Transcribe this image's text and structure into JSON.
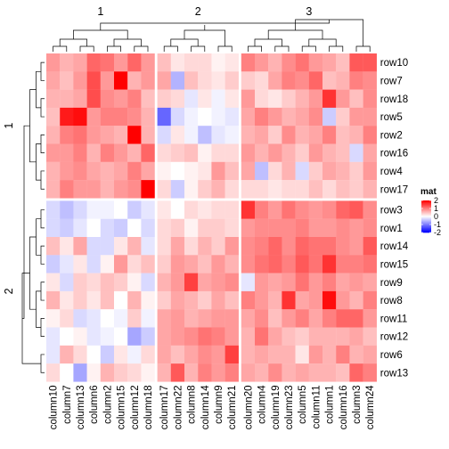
{
  "chart_data": {
    "type": "heatmap",
    "title": "",
    "column_split_labels": [
      "1",
      "2",
      "3"
    ],
    "row_split_labels": [
      "1",
      "2"
    ],
    "column_groups": [
      [
        "column10",
        "column7",
        "column13",
        "column6",
        "column2",
        "column15",
        "column12",
        "column18"
      ],
      [
        "column17",
        "column22",
        "column8",
        "column14",
        "column9",
        "column21"
      ],
      [
        "column20",
        "column4",
        "column19",
        "column23",
        "column5",
        "column11",
        "column1",
        "column16",
        "column3",
        "column24"
      ]
    ],
    "row_groups": [
      [
        "row10",
        "row7",
        "row18",
        "row5",
        "row2",
        "row16",
        "row4",
        "row17"
      ],
      [
        "row3",
        "row1",
        "row14",
        "row15",
        "row9",
        "row8",
        "row11",
        "row12",
        "row6",
        "row13"
      ]
    ],
    "values": [
      [
        0.8,
        0.6,
        0.7,
        1.2,
        1.1,
        0.8,
        1.2,
        0.8,
        0.5,
        0.2,
        0.3,
        0.3,
        0.1,
        0.2,
        1.0,
        0.8,
        0.6,
        0.9,
        1.1,
        0.8,
        0.7,
        0.5,
        1.3,
        1.3
      ],
      [
        0.7,
        0.5,
        0.8,
        1.4,
        0.8,
        2.0,
        0.6,
        0.8,
        0.7,
        -0.6,
        0.5,
        0.3,
        0.2,
        0.4,
        0.4,
        0.3,
        0.7,
        1.0,
        0.9,
        1.2,
        0.5,
        0.6,
        1.0,
        0.9
      ],
      [
        0.6,
        0.6,
        0.7,
        1.4,
        0.9,
        0.8,
        1.0,
        0.5,
        0.4,
        0.3,
        -0.2,
        0.2,
        -0.1,
        0.2,
        0.8,
        0.3,
        0.2,
        0.4,
        0.6,
        0.8,
        1.6,
        0.8,
        0.5,
        0.9
      ],
      [
        0.5,
        1.8,
        1.9,
        0.8,
        1.0,
        1.0,
        0.9,
        0.6,
        -1.2,
        -0.3,
        -0.1,
        0.0,
        -0.1,
        -0.2,
        0.7,
        1.0,
        0.8,
        0.6,
        0.7,
        0.9,
        -0.4,
        0.4,
        0.8,
        0.8
      ],
      [
        0.6,
        1.0,
        1.1,
        0.8,
        0.7,
        0.6,
        2.0,
        0.6,
        -0.3,
        0.2,
        -0.1,
        -0.5,
        -0.2,
        -0.1,
        0.6,
        0.7,
        0.4,
        0.9,
        0.6,
        0.7,
        1.0,
        0.5,
        0.6,
        1.0
      ],
      [
        0.8,
        0.8,
        1.0,
        0.6,
        1.0,
        0.8,
        0.6,
        1.2,
        0.3,
        0.4,
        0.5,
        0.1,
        0.3,
        0.3,
        0.8,
        0.6,
        0.8,
        0.6,
        0.4,
        0.8,
        0.6,
        0.5,
        -0.3,
        0.7
      ],
      [
        0.6,
        0.8,
        0.9,
        0.7,
        0.6,
        0.7,
        1.0,
        0.7,
        0.1,
        0.0,
        0.1,
        0.2,
        0.8,
        0.5,
        0.7,
        -0.5,
        0.3,
        0.6,
        -0.3,
        0.4,
        0.7,
        0.6,
        0.4,
        0.8
      ],
      [
        0.6,
        1.0,
        0.8,
        0.8,
        0.6,
        0.8,
        0.9,
        2.2,
        0.3,
        -0.4,
        0.1,
        0.4,
        0.6,
        0.3,
        0.3,
        0.3,
        0.2,
        0.3,
        0.3,
        0.5,
        0.3,
        0.5,
        0.4,
        0.6
      ],
      [
        -0.3,
        -0.5,
        -0.3,
        -0.1,
        -0.1,
        0.0,
        -0.4,
        -0.2,
        0.2,
        0.0,
        0.3,
        0.2,
        0.3,
        0.3,
        1.6,
        1.0,
        0.8,
        1.1,
        0.9,
        0.8,
        0.9,
        1.2,
        1.3,
        0.9
      ],
      [
        -0.3,
        -0.4,
        -0.2,
        0.0,
        -0.3,
        -0.4,
        0.0,
        -0.3,
        0.3,
        0.4,
        0.1,
        0.4,
        0.4,
        0.3,
        0.8,
        0.9,
        0.9,
        0.9,
        1.0,
        0.8,
        0.8,
        0.9,
        0.8,
        0.9
      ],
      [
        0.5,
        0.2,
        0.7,
        -0.3,
        -0.3,
        0.2,
        0.6,
        -0.2,
        0.3,
        0.7,
        0.3,
        0.6,
        0.4,
        0.8,
        0.9,
        1.0,
        1.2,
        0.9,
        1.2,
        1.1,
        1.1,
        0.9,
        0.8,
        1.3
      ],
      [
        -0.4,
        -0.2,
        0.2,
        -0.3,
        0.1,
        0.8,
        0.3,
        0.5,
        0.4,
        0.8,
        0.7,
        0.5,
        0.8,
        0.6,
        0.9,
        1.1,
        1.2,
        1.0,
        1.3,
        1.1,
        1.6,
        1.0,
        1.0,
        1.1
      ],
      [
        0.2,
        -0.3,
        0.4,
        0.3,
        0.5,
        0.4,
        0.1,
        -0.3,
        0.6,
        0.8,
        1.5,
        0.7,
        0.8,
        0.9,
        -0.2,
        0.8,
        0.7,
        0.8,
        1.1,
        0.8,
        1.0,
        0.7,
        0.8,
        0.7
      ],
      [
        0.6,
        0.2,
        0.4,
        0.2,
        0.5,
        0.0,
        0.6,
        0.1,
        0.4,
        0.7,
        0.6,
        0.4,
        0.7,
        0.5,
        1.0,
        0.8,
        0.6,
        1.6,
        0.7,
        0.8,
        1.9,
        0.8,
        0.6,
        1.0
      ],
      [
        0.1,
        0.3,
        -0.3,
        -0.2,
        0.0,
        -0.1,
        0.4,
        -0.1,
        0.7,
        0.8,
        0.6,
        0.7,
        0.8,
        0.8,
        0.7,
        0.9,
        0.5,
        0.8,
        1.0,
        0.7,
        1.0,
        1.2,
        1.2,
        0.8
      ],
      [
        -0.2,
        0.0,
        0.1,
        -0.2,
        -0.1,
        0.0,
        -0.7,
        -0.4,
        0.7,
        0.8,
        0.9,
        1.1,
        1.0,
        0.8,
        0.6,
        1.1,
        0.7,
        0.5,
        0.4,
        0.6,
        0.6,
        0.6,
        0.7,
        0.5
      ],
      [
        -0.2,
        0.6,
        0.3,
        0.0,
        -0.4,
        0.2,
        -0.1,
        0.3,
        0.7,
        0.5,
        0.7,
        0.9,
        0.8,
        1.5,
        0.6,
        0.7,
        0.6,
        0.6,
        0.2,
        0.8,
        0.6,
        1.0,
        0.6,
        0.7
      ],
      [
        0.3,
        0.0,
        -0.7,
        0.1,
        0.6,
        0.4,
        0.3,
        0.1,
        0.6,
        1.3,
        0.6,
        1.0,
        0.8,
        1.0,
        0.7,
        0.6,
        0.9,
        0.6,
        0.7,
        0.6,
        0.6,
        0.5,
        1.2,
        1.0
      ]
    ],
    "legend": {
      "title": "mat",
      "ticks": [
        2,
        1,
        0,
        -1,
        -2
      ],
      "colors": {
        "low": "#0000ff",
        "mid": "#ffffff",
        "high": "#ff0000"
      },
      "range": [
        -2,
        2
      ]
    },
    "grid": false
  }
}
